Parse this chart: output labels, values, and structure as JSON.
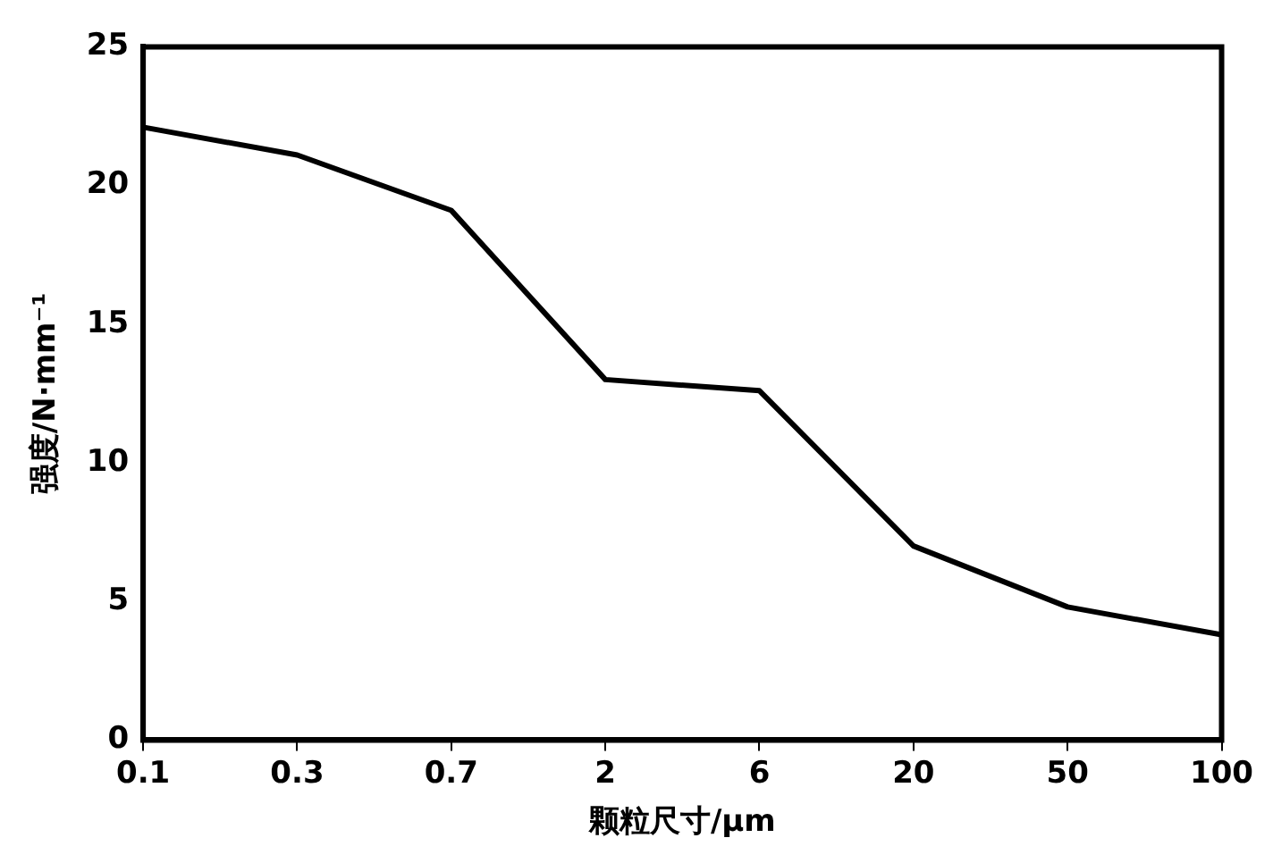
{
  "chart_data": {
    "type": "line",
    "xlabel": "颗粒尺寸/μm",
    "ylabel": "强度/N·mm⁻¹",
    "categories": [
      "0.1",
      "0.3",
      "0.7",
      "2",
      "6",
      "20",
      "50",
      "100"
    ],
    "series": [
      {
        "color": "#000000",
        "values": [
          22.1,
          21.1,
          19.1,
          13.0,
          12.6,
          7.0,
          4.8,
          3.8
        ]
      }
    ],
    "ylim": [
      0,
      25
    ],
    "yticks": [
      0,
      5,
      10,
      15,
      20,
      25
    ],
    "grid": false,
    "legend": false,
    "marker": "none",
    "line_style": "solid"
  }
}
